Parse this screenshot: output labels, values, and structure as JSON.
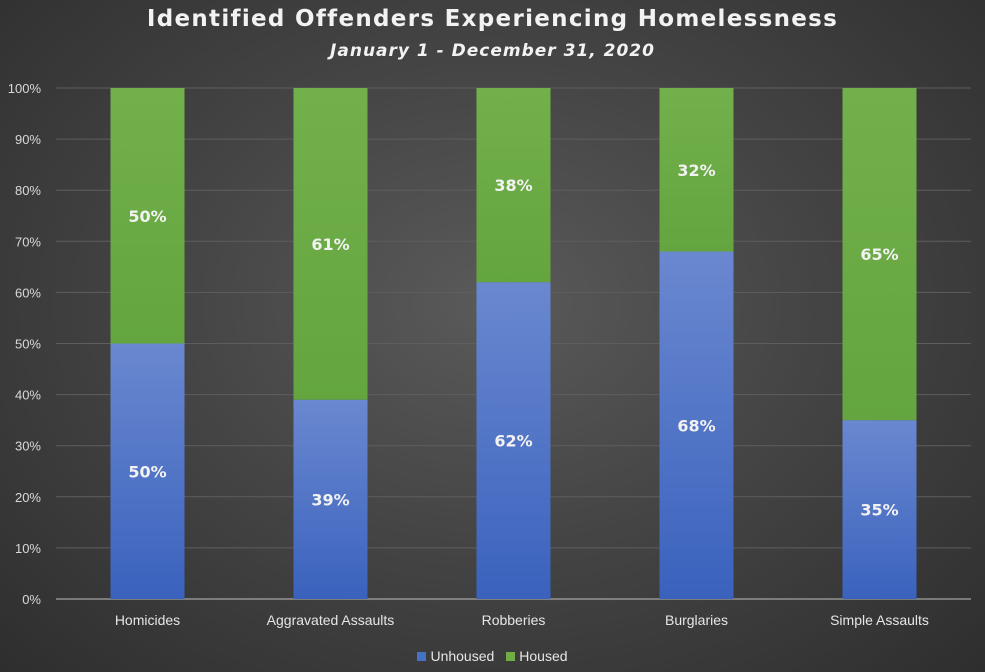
{
  "chart_data": {
    "type": "bar",
    "stacked": true,
    "percent_stacked": true,
    "title": "Identified Offenders Experiencing Homelessness",
    "subtitle": "January 1 - December 31, 2020",
    "categories": [
      "Homicides",
      "Aggravated Assaults",
      "Robberies",
      "Burglaries",
      "Simple Assaults"
    ],
    "series": [
      {
        "name": "Unhoused",
        "color": "#4472c4",
        "values": [
          50,
          39,
          62,
          68,
          35
        ],
        "labels": [
          "50%",
          "39%",
          "62%",
          "68%",
          "35%"
        ]
      },
      {
        "name": "Housed",
        "color": "#70ad47",
        "values": [
          50,
          61,
          38,
          32,
          65
        ],
        "labels": [
          "50%",
          "61%",
          "38%",
          "32%",
          "65%"
        ]
      }
    ],
    "y_ticks": [
      "0%",
      "10%",
      "20%",
      "30%",
      "40%",
      "50%",
      "60%",
      "70%",
      "80%",
      "90%",
      "100%"
    ],
    "ylim": [
      0,
      100
    ],
    "grid": true,
    "legend_position": "bottom"
  }
}
